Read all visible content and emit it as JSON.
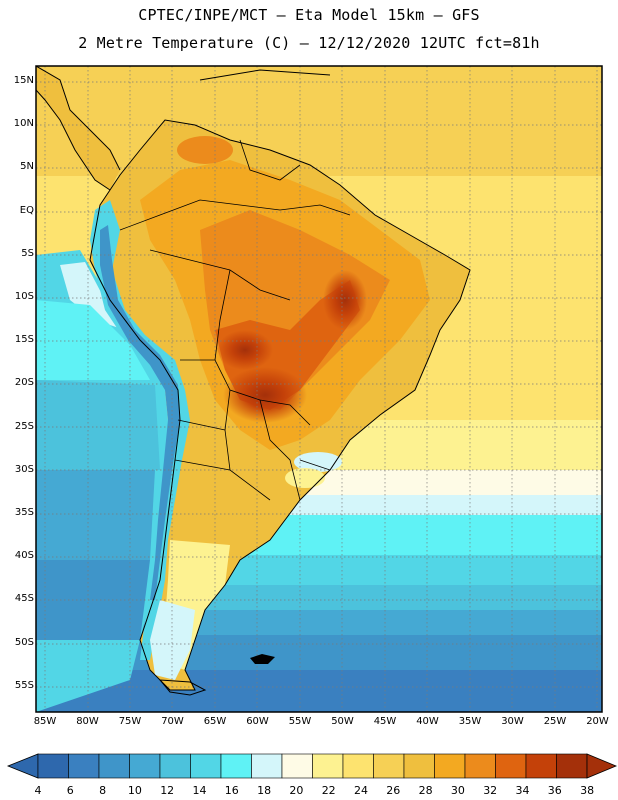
{
  "title": {
    "line1": "CPTEC/INPE/MCT –  Eta Model 15km – GFS",
    "line2": "2 Metre Temperature (C) – 12/12/2020 12UTC fct=81h"
  },
  "axes": {
    "lat_labels": [
      "15N",
      "10N",
      "5N",
      "EQ",
      "5S",
      "10S",
      "15S",
      "20S",
      "25S",
      "30S",
      "35S",
      "40S",
      "45S",
      "50S",
      "55S"
    ],
    "lon_labels": [
      "85W",
      "80W",
      "75W",
      "70W",
      "65W",
      "60W",
      "55W",
      "50W",
      "45W",
      "40W",
      "35W",
      "30W",
      "25W",
      "20W"
    ]
  },
  "colorbar": {
    "labels": [
      "4",
      "6",
      "8",
      "10",
      "12",
      "14",
      "16",
      "18",
      "20",
      "22",
      "24",
      "26",
      "28",
      "30",
      "32",
      "34",
      "36",
      "38"
    ],
    "colors": [
      "#2e68ad",
      "#3a80c0",
      "#3f95c9",
      "#45a9d3",
      "#4cc2dc",
      "#52d6e6",
      "#5ff2f5",
      "#d4f6fa",
      "#fefbe6",
      "#fdf291",
      "#fde36f",
      "#f6d055",
      "#efbf3e",
      "#f3a921",
      "#ec8b1c",
      "#df6410",
      "#c44109",
      "#a4300a"
    ]
  },
  "icons": {
    "colorbar_left_arrow": "triangle-left-icon",
    "colorbar_right_arrow": "triangle-right-icon"
  }
}
